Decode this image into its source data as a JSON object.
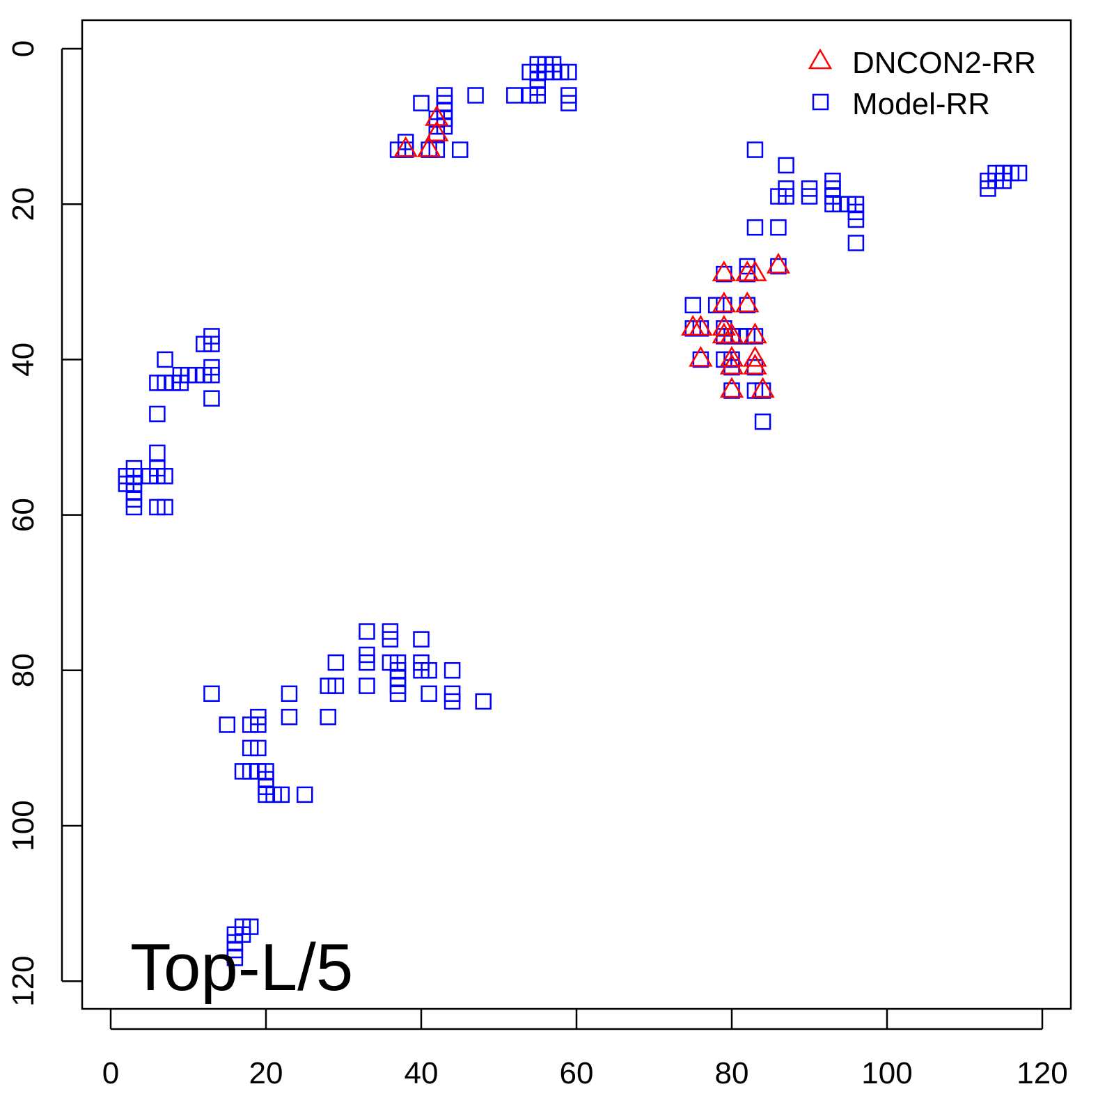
{
  "chart_data": {
    "type": "scatter",
    "title": "",
    "annotation": "Top-L/5",
    "xlabel": "",
    "ylabel": "",
    "xlim": [
      -4,
      123
    ],
    "ylim": [
      -3.6,
      123.6
    ],
    "y_inverted": true,
    "grid": false,
    "legend_position": "top-right",
    "xticks": [
      "0",
      "20",
      "40",
      "60",
      "80",
      "100",
      "120"
    ],
    "yticks": [
      "0",
      "20",
      "40",
      "60",
      "80",
      "100",
      "120"
    ],
    "series": [
      {
        "name": "DNCON2-RR",
        "marker": "triangle",
        "color": "#ff0000",
        "points": [
          [
            38,
            13
          ],
          [
            41,
            13
          ],
          [
            42,
            11
          ],
          [
            42,
            9
          ],
          [
            79,
            29
          ],
          [
            82,
            29
          ],
          [
            83,
            29
          ],
          [
            86,
            28
          ],
          [
            79,
            33
          ],
          [
            82,
            33
          ],
          [
            75,
            36
          ],
          [
            76,
            36
          ],
          [
            79,
            36
          ],
          [
            79,
            37
          ],
          [
            80,
            37
          ],
          [
            83,
            37
          ],
          [
            76,
            40
          ],
          [
            80,
            40
          ],
          [
            80,
            41
          ],
          [
            83,
            40
          ],
          [
            83,
            41
          ],
          [
            80,
            44
          ],
          [
            84,
            44
          ]
        ]
      },
      {
        "name": "Model-RR",
        "marker": "square",
        "color": "#0000ff",
        "points": [
          [
            37,
            13
          ],
          [
            38,
            13
          ],
          [
            38,
            12
          ],
          [
            40,
            7
          ],
          [
            43,
            6
          ],
          [
            43,
            7
          ],
          [
            43,
            8
          ],
          [
            43,
            9
          ],
          [
            43,
            10
          ],
          [
            42,
            9
          ],
          [
            42,
            10
          ],
          [
            42,
            11
          ],
          [
            42,
            13
          ],
          [
            41,
            13
          ],
          [
            45,
            13
          ],
          [
            47,
            6
          ],
          [
            52,
            6
          ],
          [
            54,
            6
          ],
          [
            55,
            6
          ],
          [
            55,
            5
          ],
          [
            55,
            4
          ],
          [
            55,
            3
          ],
          [
            54,
            3
          ],
          [
            56,
            3
          ],
          [
            56,
            2
          ],
          [
            55,
            2
          ],
          [
            57,
            3
          ],
          [
            57,
            2
          ],
          [
            58,
            3
          ],
          [
            59,
            3
          ],
          [
            59,
            6
          ],
          [
            59,
            7
          ],
          [
            83,
            13
          ],
          [
            87,
            15
          ],
          [
            86,
            19
          ],
          [
            87,
            18
          ],
          [
            87,
            19
          ],
          [
            90,
            18
          ],
          [
            90,
            19
          ],
          [
            93,
            17
          ],
          [
            93,
            18
          ],
          [
            93,
            19
          ],
          [
            93,
            20
          ],
          [
            94,
            20
          ],
          [
            95,
            20
          ],
          [
            96,
            20
          ],
          [
            96,
            21
          ],
          [
            96,
            22
          ],
          [
            96,
            25
          ],
          [
            83,
            23
          ],
          [
            86,
            23
          ],
          [
            86,
            28
          ],
          [
            82,
            28
          ],
          [
            79,
            29
          ],
          [
            82,
            29
          ],
          [
            75,
            33
          ],
          [
            78,
            33
          ],
          [
            79,
            33
          ],
          [
            82,
            33
          ],
          [
            75,
            36
          ],
          [
            76,
            36
          ],
          [
            79,
            36
          ],
          [
            79,
            37
          ],
          [
            80,
            37
          ],
          [
            81,
            37
          ],
          [
            82,
            37
          ],
          [
            83,
            37
          ],
          [
            76,
            40
          ],
          [
            79,
            40
          ],
          [
            80,
            40
          ],
          [
            80,
            41
          ],
          [
            83,
            41
          ],
          [
            80,
            44
          ],
          [
            83,
            44
          ],
          [
            84,
            44
          ],
          [
            84,
            48
          ],
          [
            113,
            17
          ],
          [
            113,
            18
          ],
          [
            114,
            16
          ],
          [
            114,
            17
          ],
          [
            115,
            16
          ],
          [
            115,
            17
          ],
          [
            116,
            16
          ],
          [
            117,
            16
          ],
          [
            7,
            40
          ],
          [
            13,
            37
          ],
          [
            13,
            38
          ],
          [
            12,
            38
          ],
          [
            13,
            41
          ],
          [
            13,
            42
          ],
          [
            13,
            45
          ],
          [
            6,
            43
          ],
          [
            7,
            43
          ],
          [
            8,
            43
          ],
          [
            9,
            43
          ],
          [
            9,
            42
          ],
          [
            10,
            42
          ],
          [
            11,
            42
          ],
          [
            12,
            42
          ],
          [
            6,
            47
          ],
          [
            6,
            52
          ],
          [
            6,
            54
          ],
          [
            6,
            55
          ],
          [
            7,
            55
          ],
          [
            5,
            55
          ],
          [
            3,
            54
          ],
          [
            3,
            55
          ],
          [
            2,
            55
          ],
          [
            2,
            56
          ],
          [
            3,
            56
          ],
          [
            3,
            57
          ],
          [
            3,
            58
          ],
          [
            3,
            59
          ],
          [
            6,
            59
          ],
          [
            7,
            59
          ],
          [
            13,
            83
          ],
          [
            15,
            87
          ],
          [
            18,
            87
          ],
          [
            19,
            86
          ],
          [
            19,
            87
          ],
          [
            18,
            90
          ],
          [
            19,
            90
          ],
          [
            17,
            93
          ],
          [
            18,
            93
          ],
          [
            19,
            93
          ],
          [
            20,
            93
          ],
          [
            20,
            94
          ],
          [
            20,
            95
          ],
          [
            20,
            96
          ],
          [
            21,
            96
          ],
          [
            22,
            96
          ],
          [
            25,
            96
          ],
          [
            23,
            83
          ],
          [
            23,
            86
          ],
          [
            28,
            82
          ],
          [
            29,
            82
          ],
          [
            28,
            86
          ],
          [
            29,
            79
          ],
          [
            33,
            75
          ],
          [
            33,
            78
          ],
          [
            33,
            79
          ],
          [
            33,
            82
          ],
          [
            36,
            75
          ],
          [
            36,
            76
          ],
          [
            36,
            79
          ],
          [
            37,
            79
          ],
          [
            37,
            80
          ],
          [
            37,
            81
          ],
          [
            37,
            82
          ],
          [
            37,
            83
          ],
          [
            40,
            76
          ],
          [
            40,
            79
          ],
          [
            40,
            80
          ],
          [
            41,
            80
          ],
          [
            41,
            83
          ],
          [
            44,
            80
          ],
          [
            44,
            83
          ],
          [
            44,
            84
          ],
          [
            48,
            84
          ],
          [
            16,
            114
          ],
          [
            16,
            115
          ],
          [
            16,
            116
          ],
          [
            16,
            117
          ],
          [
            17,
            113
          ],
          [
            17,
            114
          ],
          [
            18,
            113
          ]
        ]
      }
    ]
  }
}
